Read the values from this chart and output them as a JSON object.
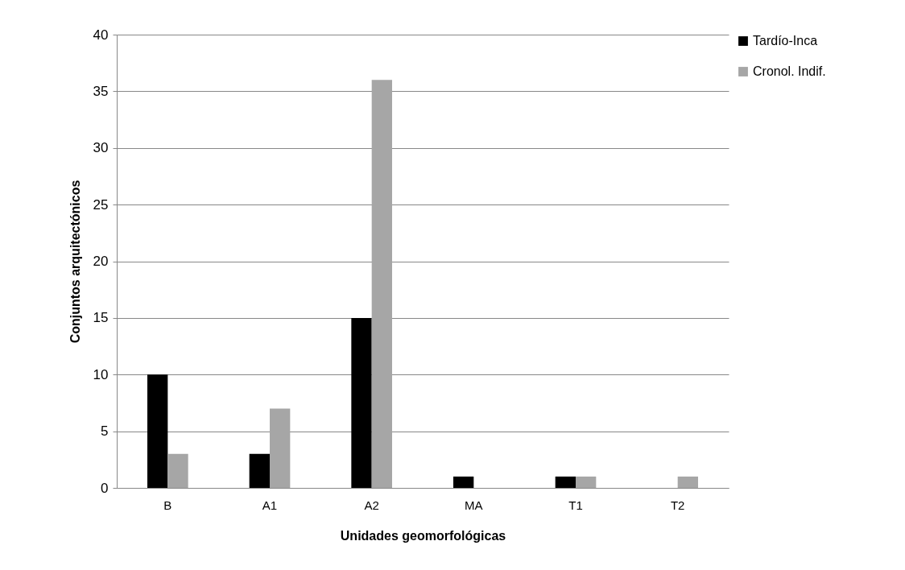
{
  "chart_data": {
    "type": "bar",
    "xlabel": "Unidades geomorfológicas",
    "ylabel": "Conjuntos arquitectónicos",
    "categories": [
      "B",
      "A1",
      "A2",
      "MA",
      "T1",
      "T2"
    ],
    "series": [
      {
        "name": "Tardío-Inca",
        "color": "#000000",
        "values": [
          10,
          3,
          15,
          1,
          1,
          0
        ]
      },
      {
        "name": "Cronol. Indif.",
        "color": "#a6a6a6",
        "values": [
          3,
          7,
          36,
          0,
          1,
          1
        ]
      }
    ],
    "ylim": [
      0,
      40
    ],
    "yticks": [
      0,
      5,
      10,
      15,
      20,
      25,
      30,
      35,
      40
    ],
    "grid": "y",
    "legend": "right"
  }
}
